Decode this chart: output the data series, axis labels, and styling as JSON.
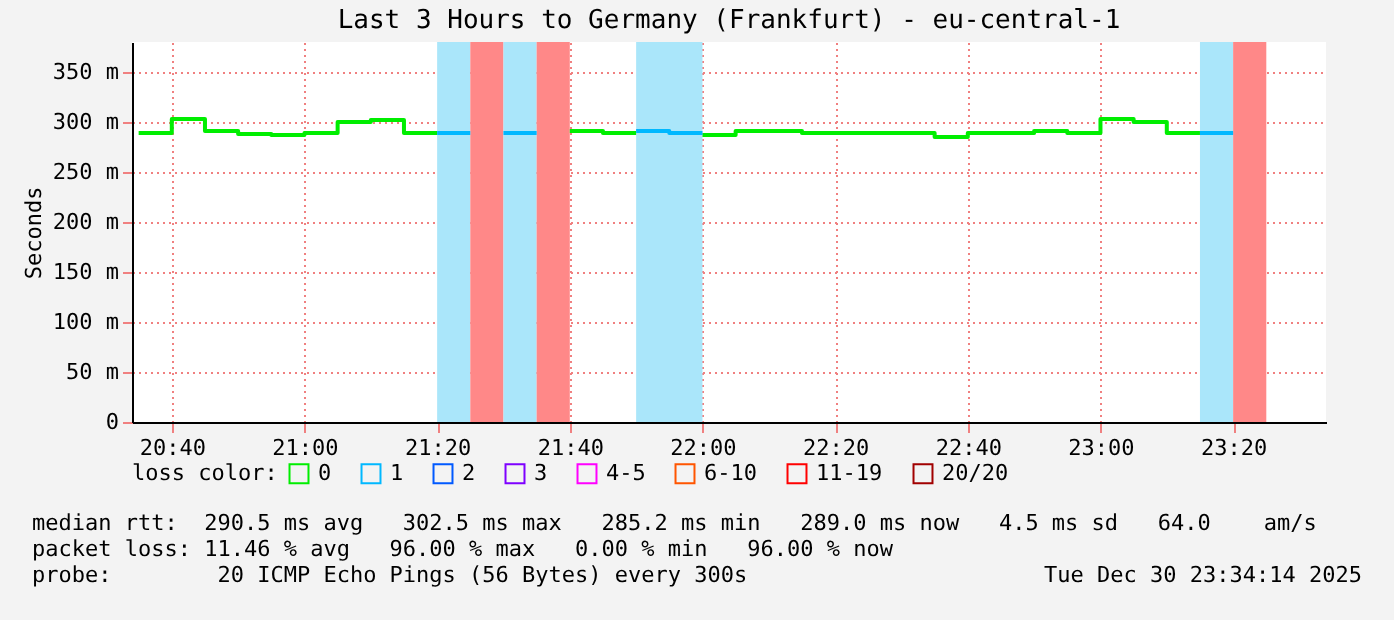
{
  "chart_data": {
    "type": "step",
    "title": "Last 3 Hours to Germany (Frankfurt) - eu-central-1",
    "ylabel": "Seconds",
    "legend_title": "loss color:",
    "legend": "bottom",
    "xlim": [
      "2025-12-30T20:34",
      "2025-12-30T23:34"
    ],
    "xticks": [
      {
        "value": "2025-12-30T20:40",
        "label": "20:40"
      },
      {
        "value": "2025-12-30T21:00",
        "label": "21:00"
      },
      {
        "value": "2025-12-30T21:20",
        "label": "21:20"
      },
      {
        "value": "2025-12-30T21:40",
        "label": "21:40"
      },
      {
        "value": "2025-12-30T22:00",
        "label": "22:00"
      },
      {
        "value": "2025-12-30T22:20",
        "label": "22:20"
      },
      {
        "value": "2025-12-30T22:40",
        "label": "22:40"
      },
      {
        "value": "2025-12-30T23:00",
        "label": "23:00"
      },
      {
        "value": "2025-12-30T23:20",
        "label": "23:20"
      }
    ],
    "ylim": [
      0,
      380
    ],
    "yticks": [
      0,
      {
        "value": 50,
        "label": "50 m"
      },
      {
        "value": 100,
        "label": "100 m"
      },
      {
        "value": 150,
        "label": "150 m"
      },
      {
        "value": 200,
        "label": "200 m"
      },
      {
        "value": 250,
        "label": "250 m"
      },
      {
        "value": 300,
        "label": "300 m"
      },
      {
        "value": 350,
        "label": "350 m"
      }
    ],
    "grid": true,
    "series": [
      {
        "name": "0",
        "color": "#00ee00",
        "x": [
          "2025-12-30T20:35",
          "2025-12-30T20:40",
          "2025-12-30T20:45",
          "2025-12-30T20:50",
          "2025-12-30T20:55",
          "2025-12-30T21:00",
          "2025-12-30T21:05",
          "2025-12-30T21:10",
          "2025-12-30T21:15",
          "2025-12-30T21:20",
          "2025-12-30T21:30",
          "2025-12-30T21:40",
          "2025-12-30T21:45",
          "2025-12-30T21:50",
          "2025-12-30T21:55",
          "2025-12-30T22:00",
          "2025-12-30T22:05",
          "2025-12-30T22:10",
          "2025-12-30T22:15",
          "2025-12-30T22:20",
          "2025-12-30T22:25",
          "2025-12-30T22:30",
          "2025-12-30T22:35",
          "2025-12-30T22:40",
          "2025-12-30T22:45",
          "2025-12-30T22:50",
          "2025-12-30T22:55",
          "2025-12-30T23:00",
          "2025-12-30T23:05",
          "2025-12-30T23:10",
          "2025-12-30T23:15"
        ],
        "values": [
          289,
          303,
          291,
          288,
          287,
          289,
          300,
          302,
          289,
          289,
          null,
          291,
          289,
          289,
          null,
          287,
          291,
          291,
          289,
          289,
          289,
          289,
          285,
          289,
          289,
          291,
          289,
          303,
          300,
          289,
          289
        ]
      },
      {
        "name": "1",
        "color": "#00b8ff",
        "x": [
          "2025-12-30T21:20",
          "2025-12-30T21:25",
          "2025-12-30T21:27",
          "2025-12-30T21:30",
          "2025-12-30T21:35",
          "2025-12-30T21:37",
          "2025-12-30T21:50",
          "2025-12-30T21:55",
          "2025-12-30T22:00",
          "2025-12-30T22:02",
          "2025-12-30T23:15",
          "2025-12-30T23:20"
        ],
        "values": [
          289,
          289,
          null,
          289,
          289,
          null,
          291,
          289,
          289,
          null,
          289,
          289
        ]
      },
      {
        "name": "2",
        "color": "#0059ff"
      },
      {
        "name": "3",
        "color": "#7e00ff"
      },
      {
        "name": "4-5",
        "color": "#ff00ff"
      },
      {
        "name": "6-10",
        "color": "#ff5500"
      },
      {
        "name": "11-19",
        "color": "#ff0000"
      },
      {
        "name": "20/20",
        "color": "#a10000"
      }
    ],
    "bands": [
      {
        "axis": "x",
        "from": "2025-12-30T21:20",
        "to": "2025-12-30T21:25",
        "color": "#aae6fa"
      },
      {
        "axis": "x",
        "from": "2025-12-30T21:25",
        "to": "2025-12-30T21:30",
        "color": "#ff8888"
      },
      {
        "axis": "x",
        "from": "2025-12-30T21:30",
        "to": "2025-12-30T21:35",
        "color": "#aae6fa"
      },
      {
        "axis": "x",
        "from": "2025-12-30T21:35",
        "to": "2025-12-30T21:40",
        "color": "#ff8888"
      },
      {
        "axis": "x",
        "from": "2025-12-30T21:50",
        "to": "2025-12-30T22:00",
        "color": "#aae6fa"
      },
      {
        "axis": "x",
        "from": "2025-12-30T23:15",
        "to": "2025-12-30T23:20",
        "color": "#aae6fa"
      },
      {
        "axis": "x",
        "from": "2025-12-30T23:20",
        "to": "2025-12-30T23:25",
        "color": "#ff8888"
      }
    ],
    "annotations": [
      "median rtt:  290.5 ms avg   302.5 ms max   285.2 ms min   289.0 ms now   4.5 ms sd   64.0    am/s",
      "packet loss: 11.46 % avg   96.00 % max   0.00 % min   96.00 % now",
      "probe:        20 ICMP Echo Pings (56 Bytes) every 300s",
      "Tue Dec 30 23:34:14 2025"
    ]
  }
}
